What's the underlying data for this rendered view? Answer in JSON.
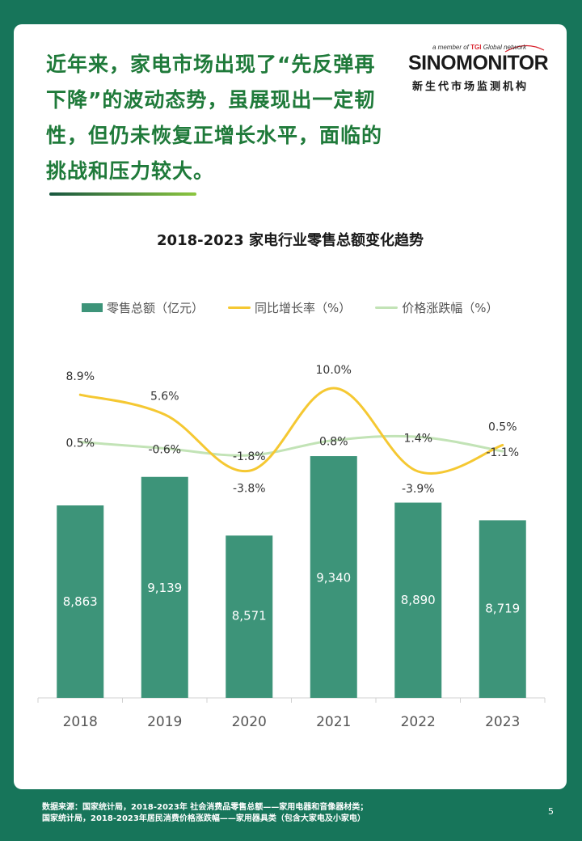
{
  "headline": {
    "lines": [
      "近年来，家电市场出现了“先反弹再",
      "下降”的波动态势，虽展现出一定韧",
      "性，但仍未恢复正增长水平，面临的",
      "挑战和压力较大。"
    ]
  },
  "logo": {
    "tagline_prefix": "a member of",
    "tagline_brand": "TGI",
    "tagline_suffix": "Global network",
    "name": "SINOMONITOR",
    "subtitle": "新生代市场监测机构"
  },
  "colors": {
    "background": "#17755a",
    "bar": "#3d9479",
    "growth_line": "#f5c832",
    "price_line": "#c2e3b6",
    "headline": "#1f7a3a"
  },
  "chart_data": {
    "type": "bar",
    "title": "2018-2023 家电行业零售总额变化趋势",
    "categories": [
      "2018",
      "2019",
      "2020",
      "2021",
      "2022",
      "2023"
    ],
    "series": [
      {
        "name": "零售总额（亿元）",
        "type": "bar",
        "values": [
          8863,
          9139,
          8571,
          9340,
          8890,
          8719
        ],
        "labels": [
          "8,863",
          "9,139",
          "8,571",
          "9,340",
          "8,890",
          "8,719"
        ]
      },
      {
        "name": "同比增长率（%）",
        "type": "line",
        "values": [
          8.9,
          5.6,
          -3.8,
          10.0,
          -3.9,
          0.5
        ],
        "labels": [
          "8.9%",
          "5.6%",
          "-3.8%",
          "10.0%",
          "-3.9%",
          "0.5%"
        ]
      },
      {
        "name": "价格涨跌幅（%）",
        "type": "line",
        "values": [
          0.5,
          -0.6,
          -1.8,
          0.8,
          1.4,
          -1.1
        ],
        "labels": [
          "0.5%",
          "-0.6%",
          "-1.8%",
          "0.8%",
          "1.4%",
          "-1.1%"
        ]
      }
    ],
    "legend_position": "top",
    "grid": false
  },
  "footer": {
    "line1": "数据来源：国家统计局，2018-2023年 社会消费品零售总额——家用电器和音像器材类；",
    "line2": "国家统计局，2018-2023年居民消费价格涨跌幅——家用器具类（包含大家电及小家电）",
    "page_number": "5"
  }
}
